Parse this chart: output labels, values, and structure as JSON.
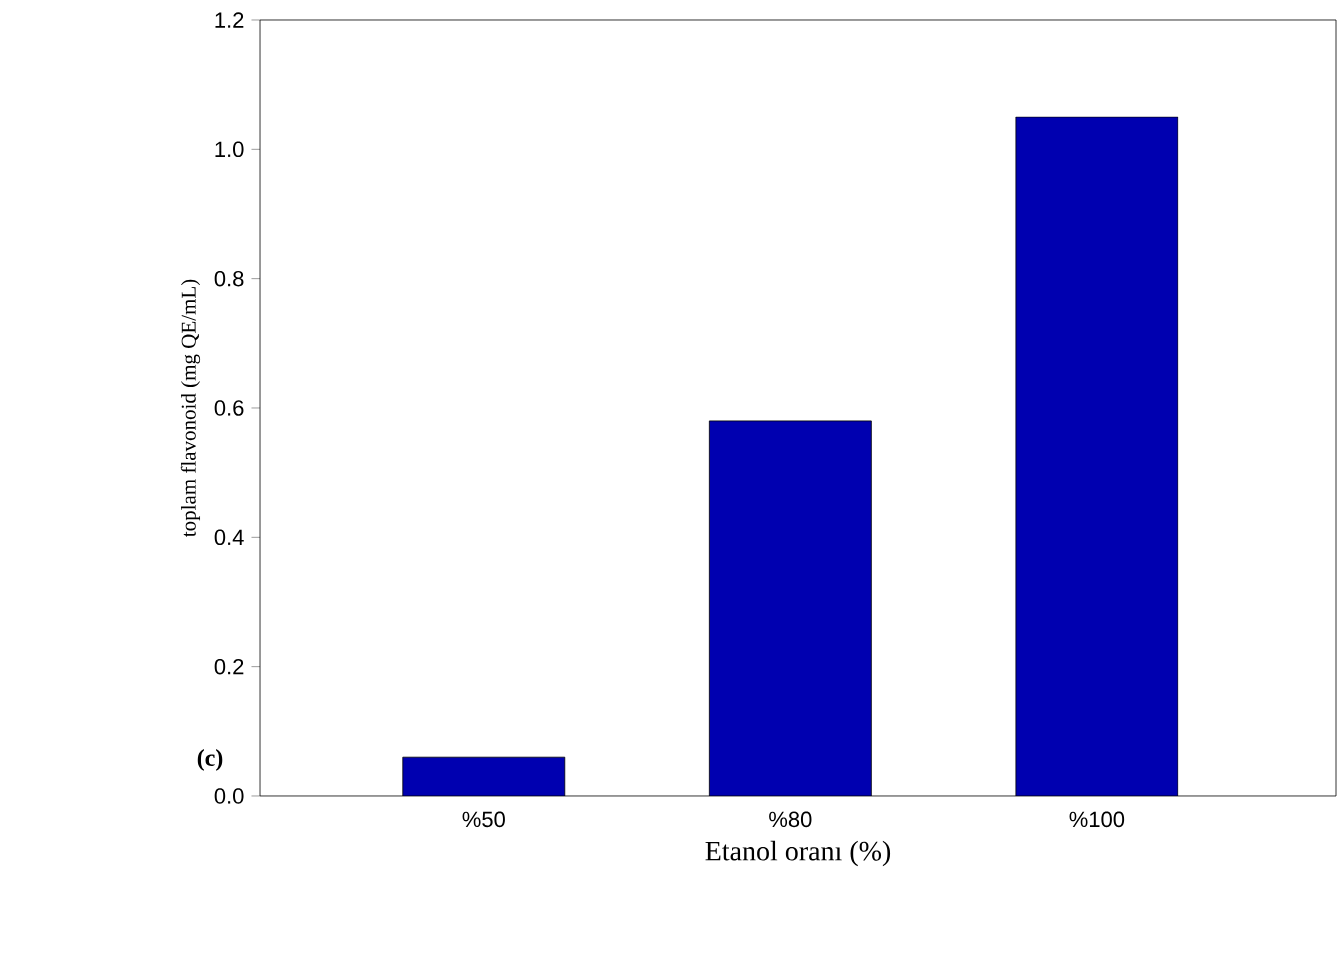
{
  "chart_data": {
    "type": "bar",
    "xlabel": "Etanol oranı (%)",
    "ylabel": "toplam flavonoid (mg QE/mL)",
    "categories": [
      "%50",
      "%80",
      "%100"
    ],
    "values": [
      0.06,
      0.58,
      1.05
    ],
    "color": "#0000b0",
    "ylim": [
      0,
      1.2
    ],
    "yticks": [
      {
        "value": 0,
        "label": "0.0"
      },
      {
        "value": 0.2,
        "label": "0.2"
      },
      {
        "value": 0.4,
        "label": "0.4"
      },
      {
        "value": 0.6,
        "label": "0.6"
      },
      {
        "value": 0.8,
        "label": "0.8"
      },
      {
        "value": 1.0,
        "label": "1.0"
      },
      {
        "value": 1.2,
        "label": "1.2"
      }
    ],
    "annotations": [
      "**(c)**"
    ]
  }
}
